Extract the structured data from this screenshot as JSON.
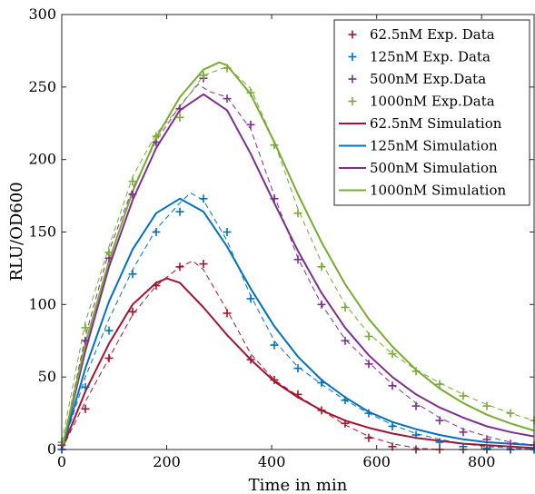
{
  "chart_data": {
    "type": "line",
    "xlabel": "Time in min",
    "ylabel": "RLU/OD600",
    "xlim": [
      0,
      900
    ],
    "ylim": [
      0,
      300
    ],
    "xticks": [
      0,
      200,
      400,
      600,
      800
    ],
    "yticks": [
      0,
      50,
      100,
      150,
      200,
      250,
      300
    ],
    "grid": false,
    "legend_position": "top-right",
    "series": [
      {
        "name": "62.5nM Exp. Data",
        "kind": "markers",
        "color": "#a2142f",
        "x": [
          0,
          45,
          90,
          135,
          180,
          225,
          270,
          315,
          360,
          405,
          450,
          495,
          540,
          585,
          630,
          675,
          720,
          765,
          810,
          855,
          900
        ],
        "y": [
          0,
          28,
          63,
          95,
          113,
          126,
          128,
          94,
          62,
          48,
          38,
          27,
          18,
          8,
          2,
          0,
          0,
          0,
          0,
          0,
          0
        ]
      },
      {
        "name": "125nM Exp. Data",
        "kind": "markers",
        "color": "#0072bd",
        "x": [
          0,
          45,
          90,
          135,
          180,
          225,
          270,
          315,
          360,
          405,
          450,
          495,
          540,
          585,
          630,
          675,
          720,
          765,
          810,
          855,
          900
        ],
        "y": [
          0,
          43,
          82,
          121,
          150,
          164,
          173,
          150,
          104,
          72,
          56,
          46,
          34,
          25,
          16,
          10,
          5,
          2,
          1,
          0,
          0
        ]
      },
      {
        "name": "500nM Exp.Data",
        "kind": "markers",
        "color": "#7e2f8e",
        "x": [
          0,
          45,
          90,
          135,
          180,
          225,
          270,
          315,
          360,
          405,
          450,
          495,
          540,
          585,
          630,
          675,
          720,
          765,
          810,
          855,
          900
        ],
        "y": [
          3,
          75,
          132,
          176,
          212,
          235,
          256,
          242,
          224,
          173,
          131,
          100,
          75,
          59,
          44,
          30,
          20,
          12,
          7,
          4,
          3
        ]
      },
      {
        "name": "1000nM Exp.Data",
        "kind": "markers",
        "color": "#77ac30",
        "x": [
          0,
          45,
          90,
          135,
          180,
          225,
          270,
          315,
          360,
          405,
          450,
          495,
          540,
          585,
          630,
          675,
          720,
          765,
          810,
          855,
          900
        ],
        "y": [
          5,
          84,
          136,
          185,
          216,
          229,
          258,
          263,
          246,
          210,
          163,
          126,
          98,
          78,
          66,
          54,
          45,
          37,
          30,
          25,
          20
        ]
      },
      {
        "name": "62.5nM Simulation",
        "kind": "line",
        "color": "#a2142f",
        "x": [
          0,
          45,
          90,
          135,
          180,
          200,
          225,
          270,
          315,
          360,
          405,
          450,
          495,
          540,
          585,
          630,
          675,
          720,
          765,
          810,
          855,
          900
        ],
        "y": [
          0,
          40,
          73,
          100,
          115,
          118,
          115,
          98,
          79,
          62,
          47,
          36,
          27,
          20,
          15,
          11,
          8,
          6,
          4,
          3,
          2,
          1
        ]
      },
      {
        "name": "125nM Simulation",
        "kind": "line",
        "color": "#0072bd",
        "x": [
          0,
          45,
          90,
          135,
          180,
          225,
          270,
          315,
          360,
          405,
          450,
          495,
          540,
          585,
          630,
          675,
          720,
          765,
          810,
          855,
          900
        ],
        "y": [
          0,
          56,
          102,
          138,
          163,
          173,
          164,
          140,
          111,
          85,
          64,
          48,
          36,
          26,
          19,
          14,
          10,
          7,
          5,
          4,
          3
        ]
      },
      {
        "name": "500nM Simulation",
        "kind": "line",
        "color": "#7e2f8e",
        "x": [
          0,
          45,
          90,
          135,
          180,
          225,
          270,
          315,
          360,
          405,
          450,
          495,
          540,
          585,
          630,
          675,
          720,
          765,
          810,
          855,
          900
        ],
        "y": [
          0,
          68,
          126,
          172,
          208,
          234,
          245,
          234,
          204,
          170,
          137,
          108,
          84,
          65,
          50,
          38,
          29,
          22,
          16,
          12,
          9
        ]
      },
      {
        "name": "1000nM Simulation",
        "kind": "line",
        "color": "#77ac30",
        "x": [
          0,
          45,
          90,
          135,
          180,
          225,
          270,
          300,
          315,
          360,
          405,
          450,
          495,
          540,
          585,
          630,
          675,
          720,
          765,
          810,
          855,
          900
        ],
        "y": [
          0,
          73,
          130,
          178,
          215,
          243,
          262,
          267,
          265,
          245,
          212,
          176,
          143,
          114,
          90,
          71,
          55,
          42,
          32,
          24,
          18,
          13
        ]
      },
      {
        "name": "",
        "kind": "dashed",
        "color": "#a2142f",
        "x": [
          0,
          45,
          90,
          135,
          180,
          225,
          250,
          270,
          315,
          360,
          405,
          450,
          495,
          540,
          585,
          630,
          675,
          720
        ],
        "y": [
          0,
          33,
          63,
          93,
          113,
          126,
          130,
          124,
          96,
          66,
          48,
          37,
          27,
          17,
          9,
          4,
          1,
          0
        ]
      },
      {
        "name": "",
        "kind": "dashed",
        "color": "#0072bd",
        "x": [
          0,
          45,
          90,
          135,
          180,
          225,
          245,
          270,
          315,
          360,
          405,
          450,
          495,
          540,
          585,
          630,
          675,
          720,
          765,
          810,
          855,
          900
        ],
        "y": [
          0,
          50,
          90,
          124,
          152,
          170,
          177,
          172,
          144,
          106,
          75,
          57,
          45,
          34,
          25,
          17,
          11,
          7,
          4,
          2,
          1,
          0
        ]
      },
      {
        "name": "",
        "kind": "dashed",
        "color": "#7e2f8e",
        "x": [
          0,
          45,
          90,
          135,
          180,
          225,
          260,
          280,
          315,
          360,
          405,
          450,
          495,
          540,
          585,
          630,
          675,
          720,
          765,
          810,
          855,
          900
        ],
        "y": [
          0,
          78,
          137,
          180,
          213,
          237,
          252,
          247,
          243,
          221,
          175,
          132,
          100,
          76,
          60,
          45,
          32,
          22,
          14,
          9,
          5,
          3
        ]
      },
      {
        "name": "",
        "kind": "dashed",
        "color": "#77ac30",
        "x": [
          0,
          45,
          90,
          135,
          180,
          225,
          270,
          315,
          360,
          405,
          450,
          495,
          540,
          585,
          630,
          675,
          720,
          765,
          810,
          855,
          900
        ],
        "y": [
          5,
          88,
          140,
          188,
          218,
          236,
          258,
          264,
          249,
          212,
          166,
          129,
          100,
          80,
          66,
          55,
          46,
          38,
          31,
          25,
          20
        ]
      }
    ],
    "legend": [
      {
        "label": "62.5nM Exp. Data",
        "kind": "marker",
        "color": "#a2142f"
      },
      {
        "label": "125nM Exp. Data",
        "kind": "marker",
        "color": "#0072bd"
      },
      {
        "label": "500nM Exp.Data",
        "kind": "marker",
        "color": "#7e2f8e"
      },
      {
        "label": "1000nM Exp.Data",
        "kind": "marker",
        "color": "#77ac30"
      },
      {
        "label": "62.5nM Simulation",
        "kind": "line",
        "color": "#a2142f"
      },
      {
        "label": "125nM Simulation",
        "kind": "line",
        "color": "#0072bd"
      },
      {
        "label": "500nM Simulation",
        "kind": "line",
        "color": "#7e2f8e"
      },
      {
        "label": "1000nM Simulation",
        "kind": "line",
        "color": "#77ac30"
      }
    ]
  }
}
